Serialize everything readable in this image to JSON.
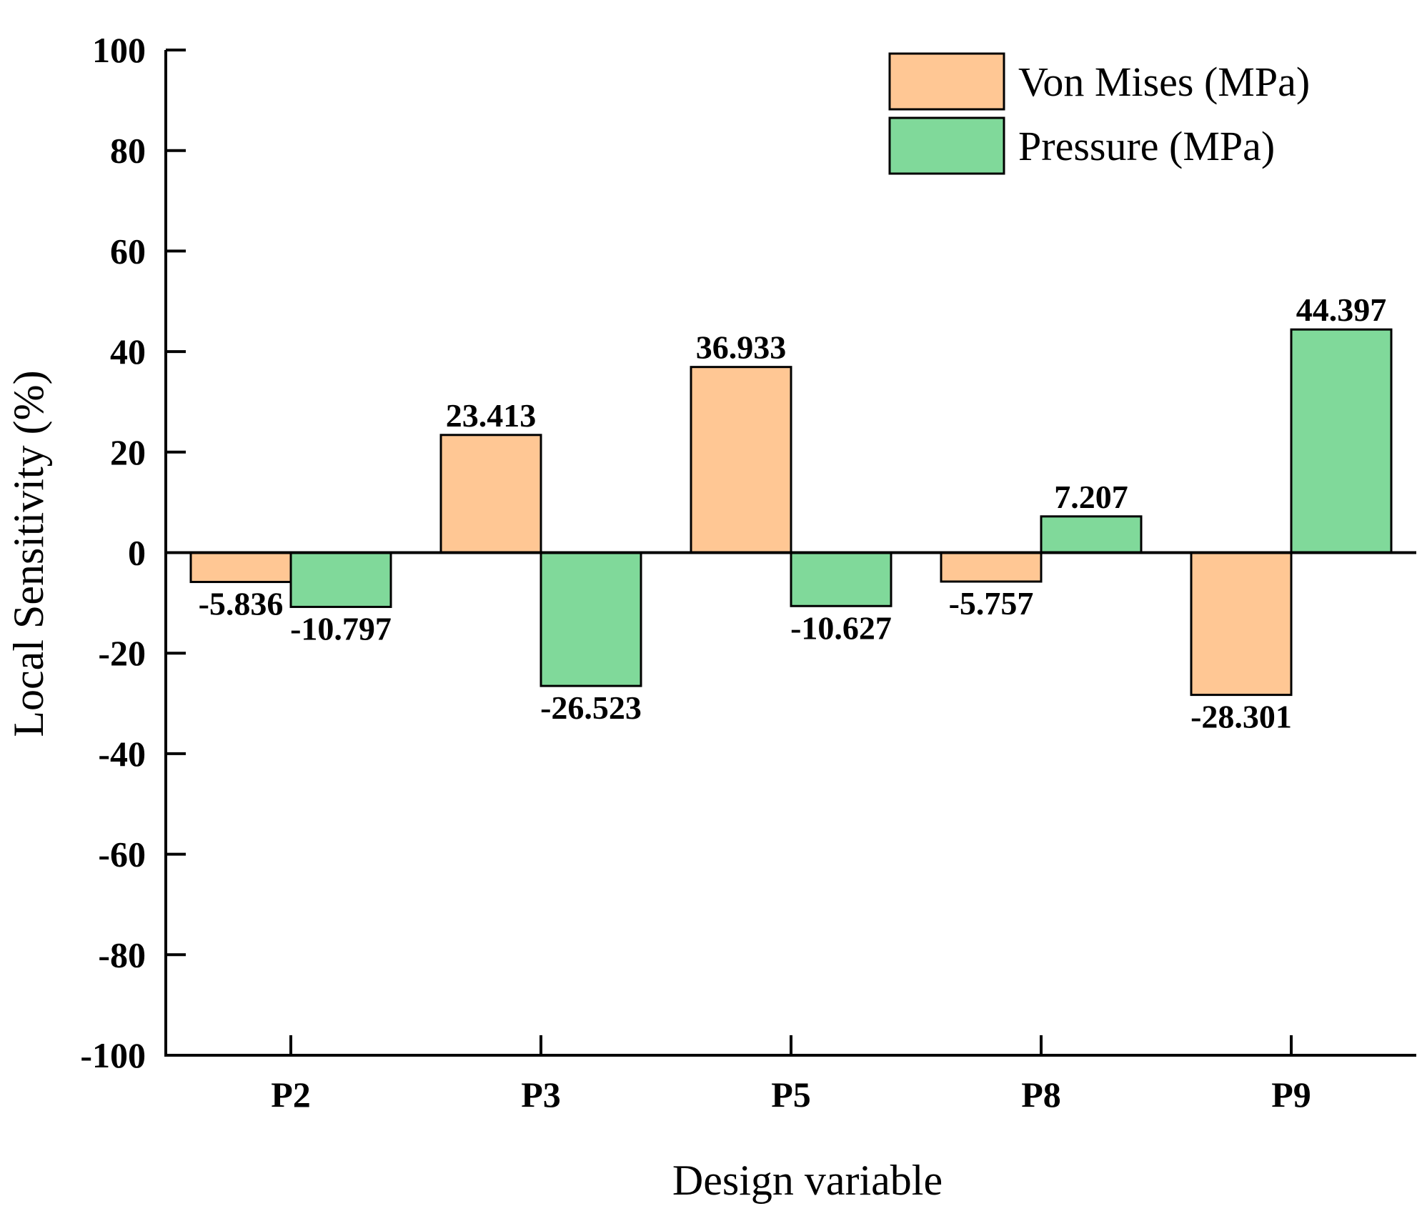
{
  "chart_data": {
    "type": "bar",
    "title": "",
    "xlabel": "Design variable",
    "ylabel": "Local Sensitivity (%)",
    "categories": [
      "P2",
      "P3",
      "P5",
      "P8",
      "P9"
    ],
    "ylim": [
      -100,
      100
    ],
    "yticks": [
      -100,
      -80,
      -60,
      -40,
      -20,
      0,
      20,
      40,
      60,
      80,
      100
    ],
    "grid": false,
    "legend_position": "top-right",
    "series": [
      {
        "name": "Von Mises (MPa)",
        "color": "#FFC794",
        "values": [
          -5.836,
          23.413,
          36.933,
          -5.757,
          -28.301
        ],
        "labels": [
          "-5.836",
          "23.413",
          "36.933",
          "-5.757",
          "-28.301"
        ]
      },
      {
        "name": "Pressure (MPa)",
        "color": "#80D99A",
        "values": [
          -10.797,
          -26.523,
          -10.627,
          7.207,
          44.397
        ],
        "labels": [
          "-10.797",
          "-26.523",
          "-10.627",
          "7.207",
          "44.397"
        ]
      }
    ]
  }
}
